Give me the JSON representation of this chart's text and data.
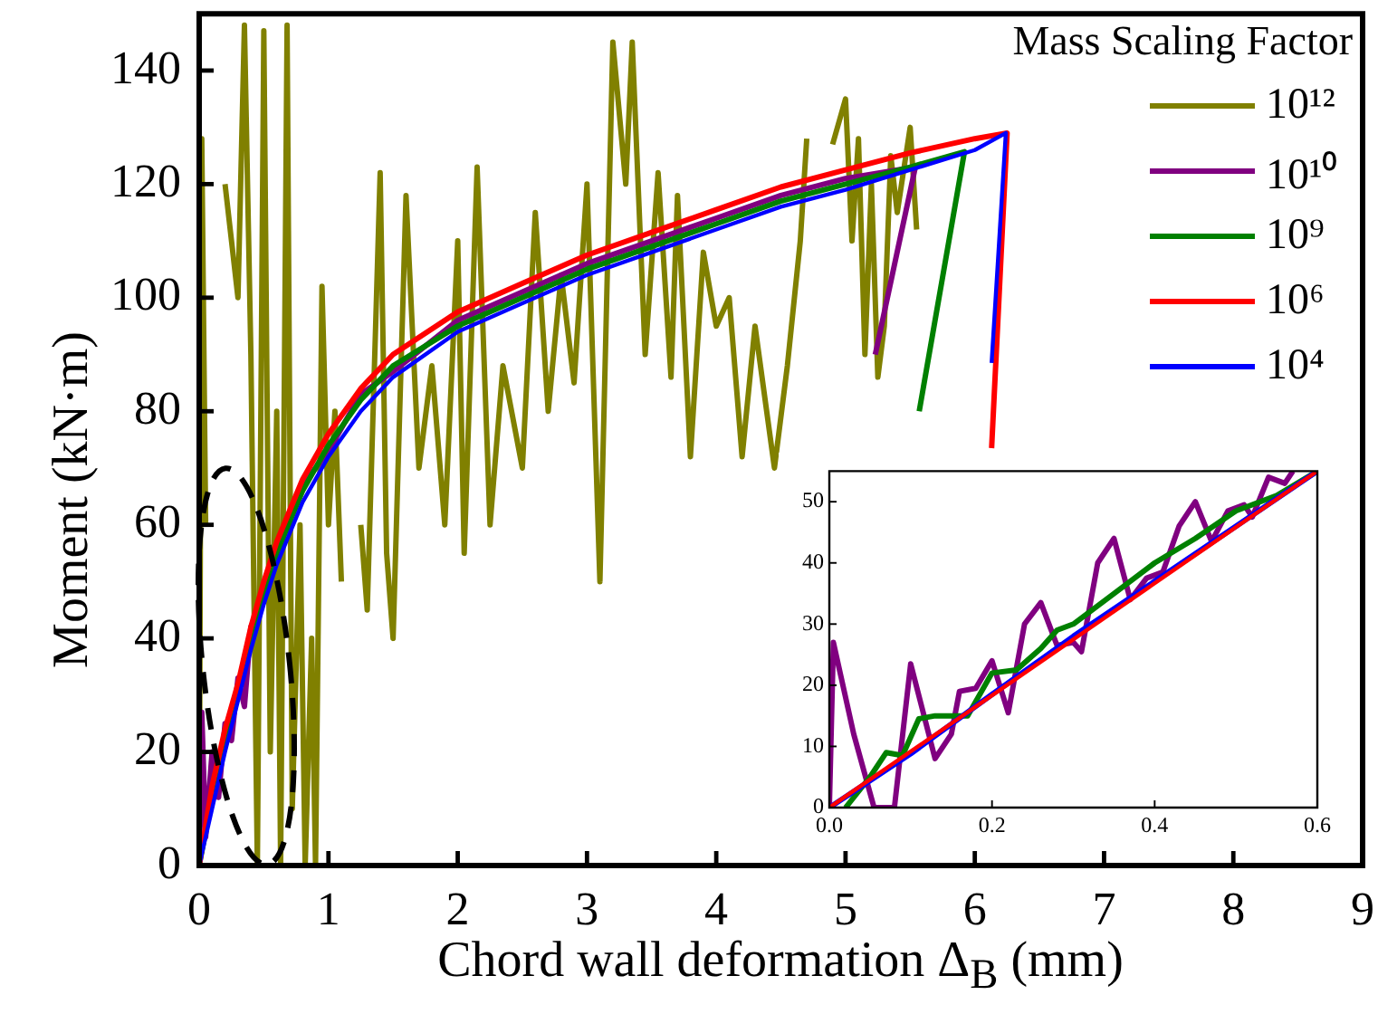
{
  "chart_data": [
    {
      "type": "line",
      "xlabel": "Chord wall deformation Δ$_{B}$ (mm)",
      "ylabel": "Moment (kN·m)",
      "legend_title": "Mass Scaling Factor",
      "xlim": [
        0,
        9
      ],
      "ylim": [
        0,
        150
      ],
      "xticks": [
        0,
        1,
        2,
        3,
        4,
        5,
        6,
        7,
        8,
        9
      ],
      "yticks": [
        0,
        20,
        40,
        60,
        80,
        100,
        120,
        140
      ],
      "grid": false,
      "legend": "top right",
      "marker": "none",
      "line_style": "solid",
      "series": [
        {
          "name": "10¹²",
          "color": "#808000",
          "x": [
            0,
            0.02,
            0.05,
            0.08,
            0.12,
            0.2,
            0.3,
            0.35,
            0.4,
            0.45,
            0.5,
            0.55,
            0.6,
            0.63,
            0.68,
            0.72,
            0.78,
            0.82,
            0.87,
            0.9,
            0.95,
            1.0,
            1.05,
            1.1,
            1.2,
            1.25,
            1.3,
            1.4,
            1.45,
            1.5,
            1.6,
            1.7,
            1.8,
            1.9,
            2.0,
            2.05,
            2.15,
            2.25,
            2.35,
            2.5,
            2.6,
            2.7,
            2.8,
            2.9,
            3.0,
            3.1,
            3.2,
            3.3,
            3.35,
            3.45,
            3.55,
            3.65,
            3.7,
            3.8,
            3.9,
            4.0,
            4.1,
            4.2,
            4.3,
            4.45,
            4.55,
            4.65,
            4.7,
            4.8,
            4.85,
            4.9,
            5.0,
            5.05,
            5.1,
            5.15,
            5.2,
            5.25,
            5.3,
            5.35,
            5.4,
            5.5,
            5.55
          ],
          "values": [
            0,
            128,
            60,
            null,
            null,
            120,
            100,
            148,
            90,
            0,
            147,
            20,
            80,
            0,
            148,
            10,
            60,
            0,
            40,
            0,
            102,
            60,
            80,
            50,
            null,
            60,
            45,
            122,
            55,
            40,
            118,
            70,
            88,
            60,
            110,
            55,
            123,
            60,
            88,
            70,
            115,
            80,
            104,
            85,
            120,
            50,
            145,
            120,
            145,
            90,
            122,
            86,
            118,
            72,
            108,
            95,
            100,
            72,
            95,
            70,
            88,
            110,
            128,
            null,
            null,
            127,
            135,
            110,
            128,
            90,
            120,
            86,
            95,
            125,
            115,
            130,
            112
          ]
        },
        {
          "name": "10¹⁰",
          "color": "#800080",
          "x": [
            0,
            0.02,
            0.05,
            0.1,
            0.15,
            0.2,
            0.25,
            0.3,
            0.35,
            0.4,
            0.5,
            0.6,
            0.8,
            1.0,
            1.25,
            1.5,
            2,
            2.5,
            3,
            3.5,
            4,
            4.5,
            5,
            5.54,
            5.23
          ],
          "values": [
            0,
            27,
            5,
            20,
            12,
            25,
            22,
            33,
            28,
            42,
            47,
            56,
            67,
            73,
            83,
            87,
            96,
            101,
            106,
            110,
            114,
            118,
            121,
            123,
            90
          ]
        },
        {
          "name": "10⁹",
          "color": "#008000",
          "x": [
            0,
            0.1,
            0.2,
            0.3,
            0.4,
            0.5,
            0.6,
            0.8,
            1.0,
            1.25,
            1.5,
            2,
            2.5,
            3,
            3.5,
            4,
            4.5,
            5,
            5.5,
            5.92,
            5.57
          ],
          "values": [
            0,
            12,
            22,
            30,
            40,
            48,
            55,
            66,
            74,
            82,
            88,
            95,
            100,
            105,
            109,
            113,
            117,
            120,
            123,
            125.7,
            80
          ]
        },
        {
          "name": "10⁶",
          "color": "#ff0000",
          "x": [
            0,
            0.1,
            0.2,
            0.3,
            0.4,
            0.5,
            0.6,
            0.8,
            1.0,
            1.25,
            1.5,
            2,
            2.5,
            3,
            3.5,
            4,
            4.5,
            5,
            5.5,
            6,
            6.25,
            6.13
          ],
          "values": [
            0,
            14,
            24,
            32,
            42,
            50,
            57,
            68,
            76,
            84,
            90,
            97.5,
            102.5,
            107.5,
            111.5,
            115.5,
            119.5,
            122.5,
            125.5,
            128,
            129,
            73.5
          ]
        },
        {
          "name": "10⁴",
          "color": "#0000ff",
          "x": [
            0,
            0.1,
            0.2,
            0.3,
            0.4,
            0.5,
            0.6,
            0.8,
            1.0,
            1.25,
            1.5,
            2,
            2.5,
            3,
            3.5,
            4,
            4.5,
            5,
            5.5,
            6,
            6.24,
            6.13
          ],
          "values": [
            0,
            10,
            20,
            29,
            38,
            46,
            53,
            64,
            72,
            80,
            86,
            94,
            99,
            104,
            108,
            112,
            116,
            119,
            122.5,
            126,
            129,
            88.5
          ]
        }
      ]
    },
    {
      "type": "line",
      "xlim": [
        0,
        0.6
      ],
      "ylim": [
        0,
        55
      ],
      "xticks": [
        {
          "value": 0,
          "label": "0.0"
        },
        0.2,
        0.4,
        0.6
      ],
      "yticks": [
        0,
        10,
        20,
        30,
        40,
        50
      ],
      "grid": false,
      "legend": false,
      "marker": "none",
      "line_style": "solid",
      "series": [
        {
          "color": "#800080",
          "x": [
            0,
            0.005,
            0.03,
            0.055,
            0.08,
            0.1,
            0.13,
            0.15,
            0.16,
            0.18,
            0.2,
            0.22,
            0.24,
            0.26,
            0.28,
            0.3,
            0.31,
            0.33,
            0.35,
            0.37,
            0.39,
            0.41,
            0.43,
            0.45,
            0.47,
            0.49,
            0.51,
            0.52,
            0.54,
            0.56,
            0.57
          ],
          "values": [
            0,
            27,
            12,
            0,
            0,
            23.5,
            8,
            12,
            19,
            19.5,
            24,
            15.5,
            30,
            33.5,
            26.5,
            27,
            25.5,
            40,
            44,
            34,
            37.5,
            38.5,
            46,
            50,
            43.5,
            48.5,
            49.5,
            47.5,
            54,
            53,
            55
          ]
        },
        {
          "color": "#008000",
          "x": [
            0.02,
            0.05,
            0.07,
            0.09,
            0.11,
            0.13,
            0.17,
            0.2,
            0.23,
            0.26,
            0.28,
            0.3,
            0.35,
            0.4,
            0.45,
            0.5,
            0.55,
            0.6
          ],
          "values": [
            0,
            5,
            9,
            8.5,
            14.5,
            15,
            15,
            22,
            22.5,
            26,
            29,
            30,
            35,
            40,
            44,
            48.5,
            51,
            55
          ]
        },
        {
          "color": "#0000ff",
          "x": [
            0,
            0.1,
            0.2,
            0.3,
            0.4,
            0.5,
            0.6
          ],
          "values": [
            0,
            8.8,
            18.5,
            28,
            37,
            46,
            55
          ]
        },
        {
          "color": "#ff0000",
          "x": [
            0,
            0.6
          ],
          "values": [
            0,
            55
          ]
        }
      ]
    }
  ]
}
